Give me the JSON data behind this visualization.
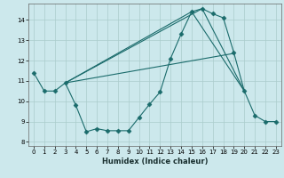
{
  "background_color": "#cce8ec",
  "grid_color": "#aacccc",
  "line_color": "#1a6b6b",
  "xlabel": "Humidex (Indice chaleur)",
  "xlim": [
    -0.5,
    23.5
  ],
  "ylim": [
    7.8,
    14.8
  ],
  "yticks": [
    8,
    9,
    10,
    11,
    12,
    13,
    14
  ],
  "xticks": [
    0,
    1,
    2,
    3,
    4,
    5,
    6,
    7,
    8,
    9,
    10,
    11,
    12,
    13,
    14,
    15,
    16,
    17,
    18,
    19,
    20,
    21,
    22,
    23
  ],
  "line1_x": [
    0,
    1,
    2,
    3,
    4,
    5,
    6,
    7,
    8,
    9,
    10,
    11,
    12,
    13,
    14,
    15,
    16,
    17,
    18,
    19,
    20,
    21,
    22,
    23
  ],
  "line1_y": [
    11.4,
    10.5,
    10.5,
    10.9,
    9.8,
    8.5,
    8.65,
    8.55,
    8.55,
    8.55,
    9.2,
    9.85,
    10.45,
    12.1,
    13.3,
    14.4,
    14.55,
    14.3,
    14.1,
    12.4,
    10.5,
    9.3,
    9.0,
    9.0
  ],
  "line2_x": [
    3,
    15,
    20
  ],
  "line2_y": [
    10.9,
    14.4,
    10.5
  ],
  "line3_x": [
    3,
    16,
    20
  ],
  "line3_y": [
    10.9,
    14.55,
    10.5
  ],
  "line4_x": [
    3,
    19
  ],
  "line4_y": [
    10.9,
    12.35
  ]
}
